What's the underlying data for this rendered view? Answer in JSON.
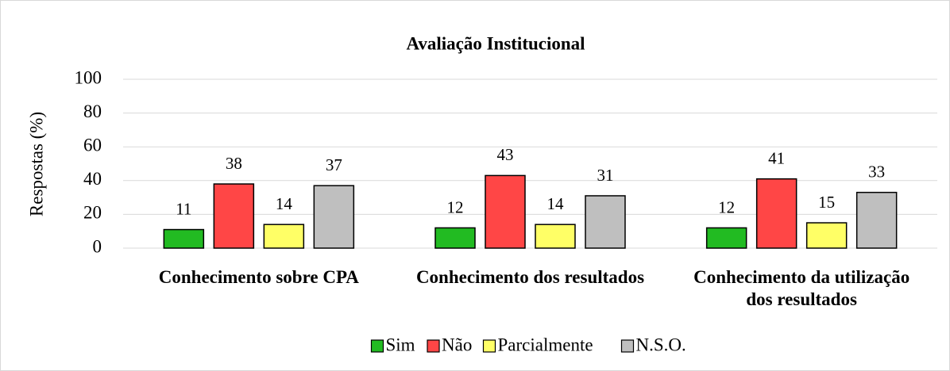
{
  "chart_data": {
    "type": "bar",
    "title": "Avaliação Institucional",
    "ylabel": "Respostas (%)",
    "categories": [
      "Conhecimento sobre CPA",
      "Conhecimento dos resultados",
      "Conhecimento da utilização dos resultados"
    ],
    "series": [
      {
        "name": "Sim",
        "color": "#22bb22",
        "values": [
          11,
          12,
          12
        ]
      },
      {
        "name": "Não",
        "color": "#ff4646",
        "values": [
          38,
          43,
          41
        ]
      },
      {
        "name": "Parcialmente",
        "color": "#ffff66",
        "values": [
          14,
          14,
          15
        ]
      },
      {
        "name": "N.S.O.",
        "color": "#bfbfbf",
        "values": [
          37,
          31,
          33
        ]
      }
    ],
    "ylim": [
      0,
      100
    ],
    "yticks": [
      0,
      20,
      40,
      60,
      80,
      100
    ],
    "grid": true,
    "legend": "bottom"
  }
}
